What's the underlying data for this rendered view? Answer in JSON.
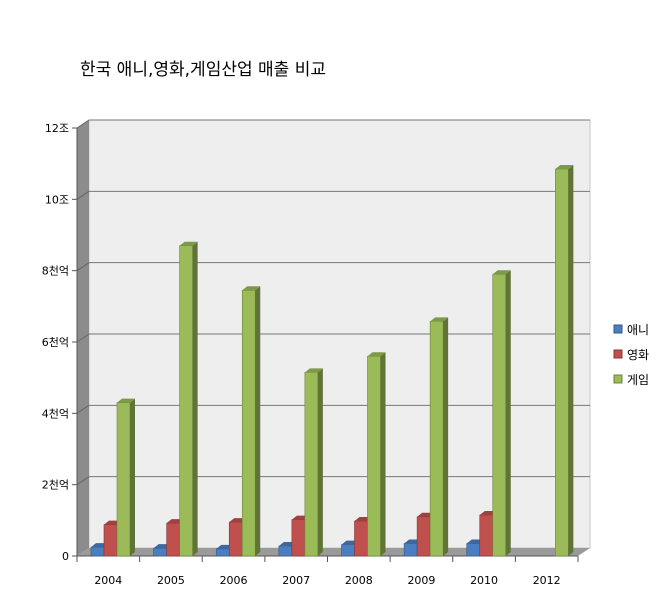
{
  "chart_data": {
    "type": "bar",
    "title": "한국 애니,영화,게임산업 매출 비교",
    "categories": [
      "2004",
      "2005",
      "2006",
      "2007",
      "2008",
      "2009",
      "2010",
      "2012"
    ],
    "y_ticks": [
      "0",
      "2천억",
      "4천억",
      "6천억",
      "8천억",
      "10조",
      "12조"
    ],
    "ylim": [
      0,
      12
    ],
    "grid": true,
    "legend_position": "right",
    "series": [
      {
        "name": "애니",
        "color": "#4a7ec0",
        "values": [
          0.25,
          0.22,
          0.2,
          0.28,
          0.32,
          0.35,
          0.35,
          null
        ]
      },
      {
        "name": "영화",
        "color": "#c0504d",
        "values": [
          0.88,
          0.92,
          0.95,
          1.02,
          0.98,
          1.1,
          1.15,
          null
        ]
      },
      {
        "name": "게임",
        "color": "#9bbb59",
        "values": [
          4.3,
          8.7,
          7.45,
          5.15,
          5.6,
          6.58,
          7.9,
          10.85
        ]
      }
    ]
  }
}
